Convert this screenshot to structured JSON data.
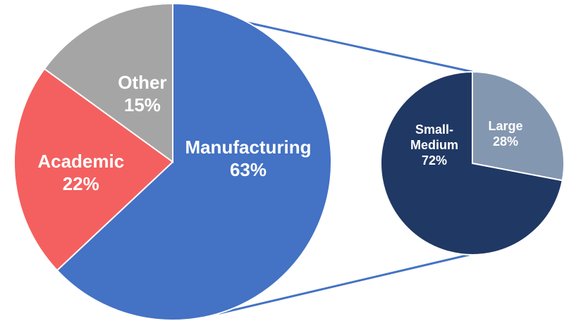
{
  "chart_data": [
    {
      "type": "pie",
      "categories": [
        "Manufacturing",
        "Academic",
        "Other"
      ],
      "values": [
        63,
        22,
        15
      ],
      "value_labels": [
        "63%",
        "22%",
        "15%"
      ],
      "colors": [
        "#4472C4",
        "#F4605F",
        "#A5A5A5"
      ],
      "title": "",
      "legend": "none"
    },
    {
      "type": "pie",
      "breakdown_of": "Manufacturing",
      "categories": [
        "Large",
        "Small-Medium"
      ],
      "category_lines": [
        [
          "Large"
        ],
        [
          "Small-",
          "Medium"
        ]
      ],
      "values": [
        28,
        72
      ],
      "value_labels": [
        "28%",
        "72%"
      ],
      "colors": [
        "#8497B0",
        "#203864"
      ],
      "title": "",
      "legend": "none"
    }
  ],
  "connector_color": "#4472C4"
}
